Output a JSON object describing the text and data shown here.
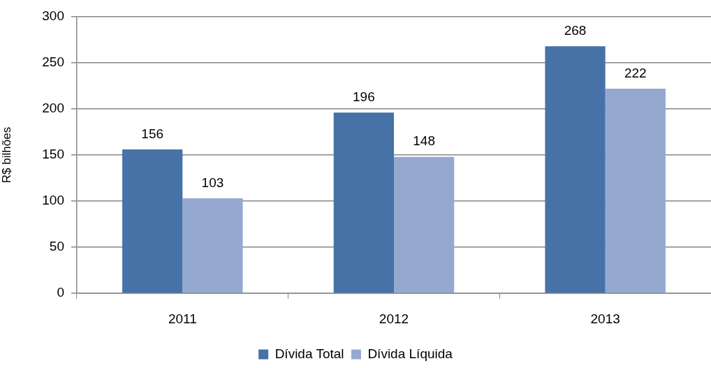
{
  "chart_data": {
    "type": "bar",
    "ylabel": "R$ bilhões",
    "categories": [
      "2011",
      "2012",
      "2013"
    ],
    "series": [
      {
        "name": "Dívida Total",
        "color": "#4672a8",
        "values": [
          156,
          196,
          268
        ]
      },
      {
        "name": "Dívida Líquida",
        "color": "#95a9d0",
        "values": [
          103,
          148,
          222
        ]
      }
    ],
    "ylim": [
      0,
      300
    ],
    "yticks": [
      0,
      50,
      100,
      150,
      200,
      250,
      300
    ],
    "grid": "y",
    "legend": "bottom",
    "data_labels": true
  }
}
